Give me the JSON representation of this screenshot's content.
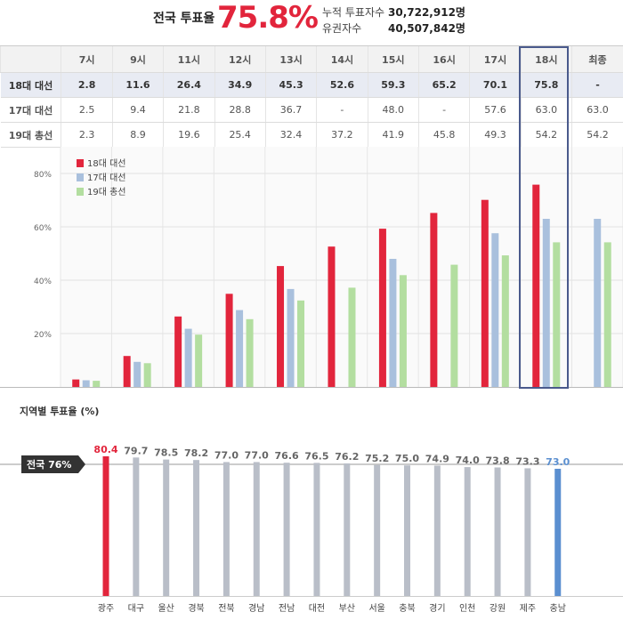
{
  "header": {
    "turnout_label": "전국 투표율",
    "turnout_value": "75.8%",
    "cumulative_label": "누적 투표자수",
    "cumulative_value": "30,722,912명",
    "eligible_label": "유권자수",
    "eligible_value": "40,507,842명"
  },
  "table": {
    "columns": [
      "7시",
      "9시",
      "11시",
      "12시",
      "13시",
      "14시",
      "15시",
      "16시",
      "17시",
      "18시",
      "최종"
    ],
    "rows": [
      {
        "label": "18대 대선",
        "values": [
          "2.8",
          "11.6",
          "26.4",
          "34.9",
          "45.3",
          "52.6",
          "59.3",
          "65.2",
          "70.1",
          "75.8",
          "-"
        ]
      },
      {
        "label": "17대 대선",
        "values": [
          "2.5",
          "9.4",
          "21.8",
          "28.8",
          "36.7",
          "-",
          "48.0",
          "-",
          "57.6",
          "63.0",
          "63.0"
        ]
      },
      {
        "label": "19대 총선",
        "values": [
          "2.3",
          "8.9",
          "19.6",
          "25.4",
          "32.4",
          "37.2",
          "41.9",
          "45.8",
          "49.3",
          "54.2",
          "54.2"
        ]
      }
    ]
  },
  "chart_data": [
    {
      "type": "bar",
      "categories": [
        "7시",
        "9시",
        "11시",
        "12시",
        "13시",
        "14시",
        "15시",
        "16시",
        "17시",
        "18시",
        "최종"
      ],
      "series": [
        {
          "name": "18대 대선",
          "color": "#e2253c",
          "values": [
            2.8,
            11.6,
            26.4,
            34.9,
            45.3,
            52.6,
            59.3,
            65.2,
            70.1,
            75.8,
            null
          ]
        },
        {
          "name": "17대 대선",
          "color": "#a9c0dd",
          "values": [
            2.5,
            9.4,
            21.8,
            28.8,
            36.7,
            null,
            48.0,
            null,
            57.6,
            63.0,
            63.0
          ]
        },
        {
          "name": "19대 총선",
          "color": "#b3dea0",
          "values": [
            2.3,
            8.9,
            19.6,
            25.4,
            32.4,
            37.2,
            41.9,
            45.8,
            49.3,
            54.2,
            54.2
          ]
        }
      ],
      "yticks": [
        "20%",
        "40%",
        "60%",
        "80%"
      ],
      "ytick_values": [
        20,
        40,
        60,
        80
      ],
      "ylim": [
        0,
        88
      ],
      "grid": true,
      "legend": "top-left",
      "highlight_category": "18시"
    },
    {
      "type": "bar",
      "title": "지역별 투표율 (%)",
      "categories": [
        "광주",
        "대구",
        "울산",
        "경북",
        "전북",
        "경남",
        "전남",
        "대전",
        "부산",
        "서울",
        "충북",
        "경기",
        "인천",
        "강원",
        "제주",
        "충남"
      ],
      "values": [
        80.4,
        79.7,
        78.5,
        78.2,
        77.0,
        77.0,
        76.6,
        76.5,
        76.2,
        75.2,
        75.0,
        74.9,
        74.0,
        73.8,
        73.3,
        73.0
      ],
      "value_labels": [
        "80.4",
        "79.7",
        "78.5",
        "78.2",
        "77.0",
        "77.0",
        "76.6",
        "76.5",
        "76.2",
        "75.2",
        "75.0",
        "74.9",
        "74.0",
        "73.8",
        "73.3",
        "73.0"
      ],
      "reference_label": "전국 76%",
      "reference_value": 76,
      "colors": {
        "highest": "#e2253c",
        "lowest": "#5b8fd0",
        "default": "#b9bec8"
      }
    }
  ]
}
